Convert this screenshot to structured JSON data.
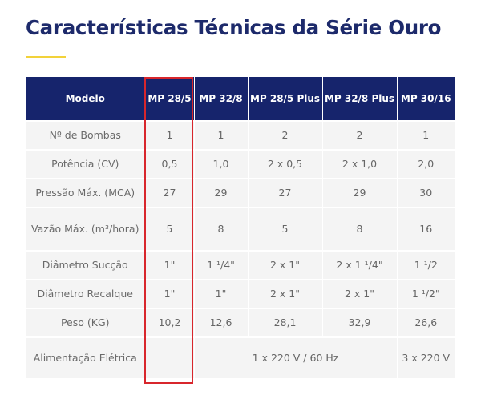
{
  "title": "Características Técnicas da Série Ouro",
  "colors": {
    "header_bg": "#16246c",
    "title": "#1d2a6b",
    "accent": "#f2d23a",
    "highlight": "#d8262c",
    "cell_bg": "#f4f4f4"
  },
  "table": {
    "headers": [
      "Modelo",
      "MP 28/5",
      "MP 32/8",
      "MP 28/5 Plus",
      "MP 32/8 Plus",
      "MP 30/16"
    ],
    "rows": [
      [
        "Nº de Bombas",
        "1",
        "1",
        "2",
        "2",
        "1"
      ],
      [
        "Potência (CV)",
        "0,5",
        "1,0",
        "2 x 0,5",
        "2 x 1,0",
        "2,0"
      ],
      [
        "Pressão Máx. (MCA)",
        "27",
        "29",
        "27",
        "29",
        "30"
      ],
      [
        "Vazão Máx. (m³/hora)",
        "5",
        "8",
        "5",
        "8",
        "16"
      ],
      [
        "Diâmetro Sucção",
        "1\"",
        "1 ¹/4\"",
        "2 x 1\"",
        "2 x 1 ¹/4\"",
        "1 ¹/2"
      ],
      [
        "Diâmetro Recalque",
        "1\"",
        "1\"",
        "2 x 1\"",
        "2 x 1\"",
        "1 ¹/2\""
      ],
      [
        "Peso (KG)",
        "10,2",
        "12,6",
        "28,1",
        "32,9",
        "26,6"
      ]
    ],
    "last_row": {
      "label": "Alimentação Elétrica",
      "merged_value": "1 x 220 V / 60 Hz",
      "last_value": "3 x 220 V"
    }
  }
}
